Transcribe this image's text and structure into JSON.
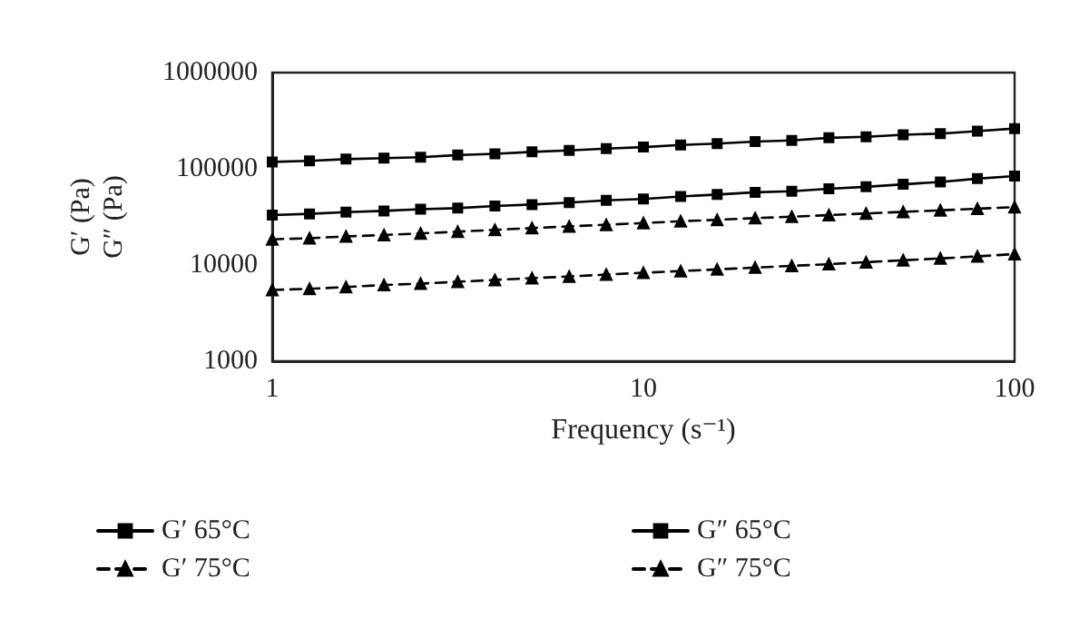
{
  "chart_data": {
    "type": "line",
    "xlabel": "Frequency (s⁻¹)",
    "ylabel": "G′ (Pa)\nG″ (Pa)",
    "log": "xy",
    "xlim": [
      1,
      100
    ],
    "xticks": [
      1,
      10,
      100
    ],
    "ylim": [
      1000,
      1000000
    ],
    "yticks": [
      1000,
      10000,
      100000,
      1000000
    ],
    "grid": false,
    "legend": "bottom",
    "x": [
      1,
      1.26,
      1.58,
      2,
      2.51,
      3.16,
      3.98,
      5.01,
      6.31,
      7.94,
      10,
      12.6,
      15.8,
      20,
      25.1,
      31.6,
      39.8,
      50.1,
      63.1,
      79.4,
      100
    ],
    "series": [
      {
        "name": "G′ 65°C",
        "color": "#000000",
        "marker": "square",
        "line_style": "solid",
        "values": [
          118000,
          121000,
          126000,
          129000,
          132000,
          139000,
          143000,
          150000,
          155000,
          162000,
          168000,
          177000,
          183000,
          192000,
          197000,
          210000,
          215000,
          226000,
          232000,
          246000,
          262000
        ]
      },
      {
        "name": "G″ 65°C",
        "color": "#000000",
        "marker": "square",
        "line_style": "solid",
        "values": [
          33000,
          34000,
          35500,
          36500,
          38000,
          39000,
          41000,
          42500,
          44500,
          47000,
          48500,
          51500,
          54000,
          57000,
          58500,
          62000,
          65000,
          69000,
          73000,
          79000,
          84000
        ]
      },
      {
        "name": "G′ 75°C",
        "color": "#000000",
        "marker": "triangle",
        "line_style": "dashed",
        "values": [
          18500,
          19000,
          19800,
          20500,
          21300,
          22200,
          23200,
          24200,
          25200,
          26200,
          27300,
          28500,
          29500,
          30700,
          31800,
          33000,
          34300,
          35700,
          37000,
          38500,
          40000
        ]
      },
      {
        "name": "G″ 75°C",
        "color": "#000000",
        "marker": "triangle",
        "line_style": "dashed",
        "values": [
          5500,
          5650,
          5900,
          6200,
          6400,
          6700,
          7000,
          7300,
          7600,
          7950,
          8300,
          8650,
          9000,
          9400,
          9800,
          10200,
          10700,
          11200,
          11700,
          12300,
          13000
        ]
      }
    ]
  }
}
